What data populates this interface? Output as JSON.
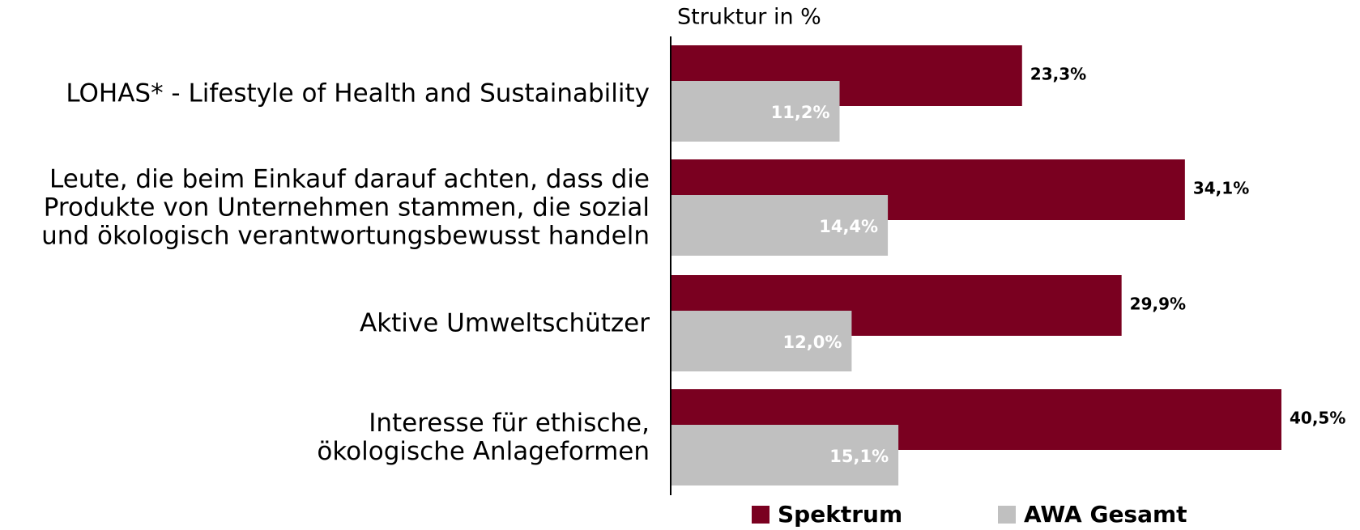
{
  "chart_data": {
    "type": "bar",
    "orientation": "horizontal",
    "title": "Struktur in %",
    "categories": [
      "LOHAS* - Lifestyle of Health and Sustainability",
      "Leute, die beim Einkauf darauf achten, dass die\nProdukte von Unternehmen stammen, die sozial\nund ökologisch verantwortungsbewusst handeln",
      "Aktive Umweltschützer",
      "Interesse für ethische,\nökologische Anlageformen"
    ],
    "series": [
      {
        "name": "Spektrum",
        "color": "#7a0020",
        "values": [
          23.3,
          34.1,
          29.9,
          40.5
        ],
        "value_labels": [
          "23,3%",
          "34,1%",
          "29,9%",
          "40,5%"
        ]
      },
      {
        "name": "AWA Gesamt",
        "color": "#c0c0c0",
        "values": [
          11.2,
          14.4,
          12.0,
          15.1
        ],
        "value_labels": [
          "11,2%",
          "14,4%",
          "12,0%",
          "15,1%"
        ]
      }
    ]
  }
}
